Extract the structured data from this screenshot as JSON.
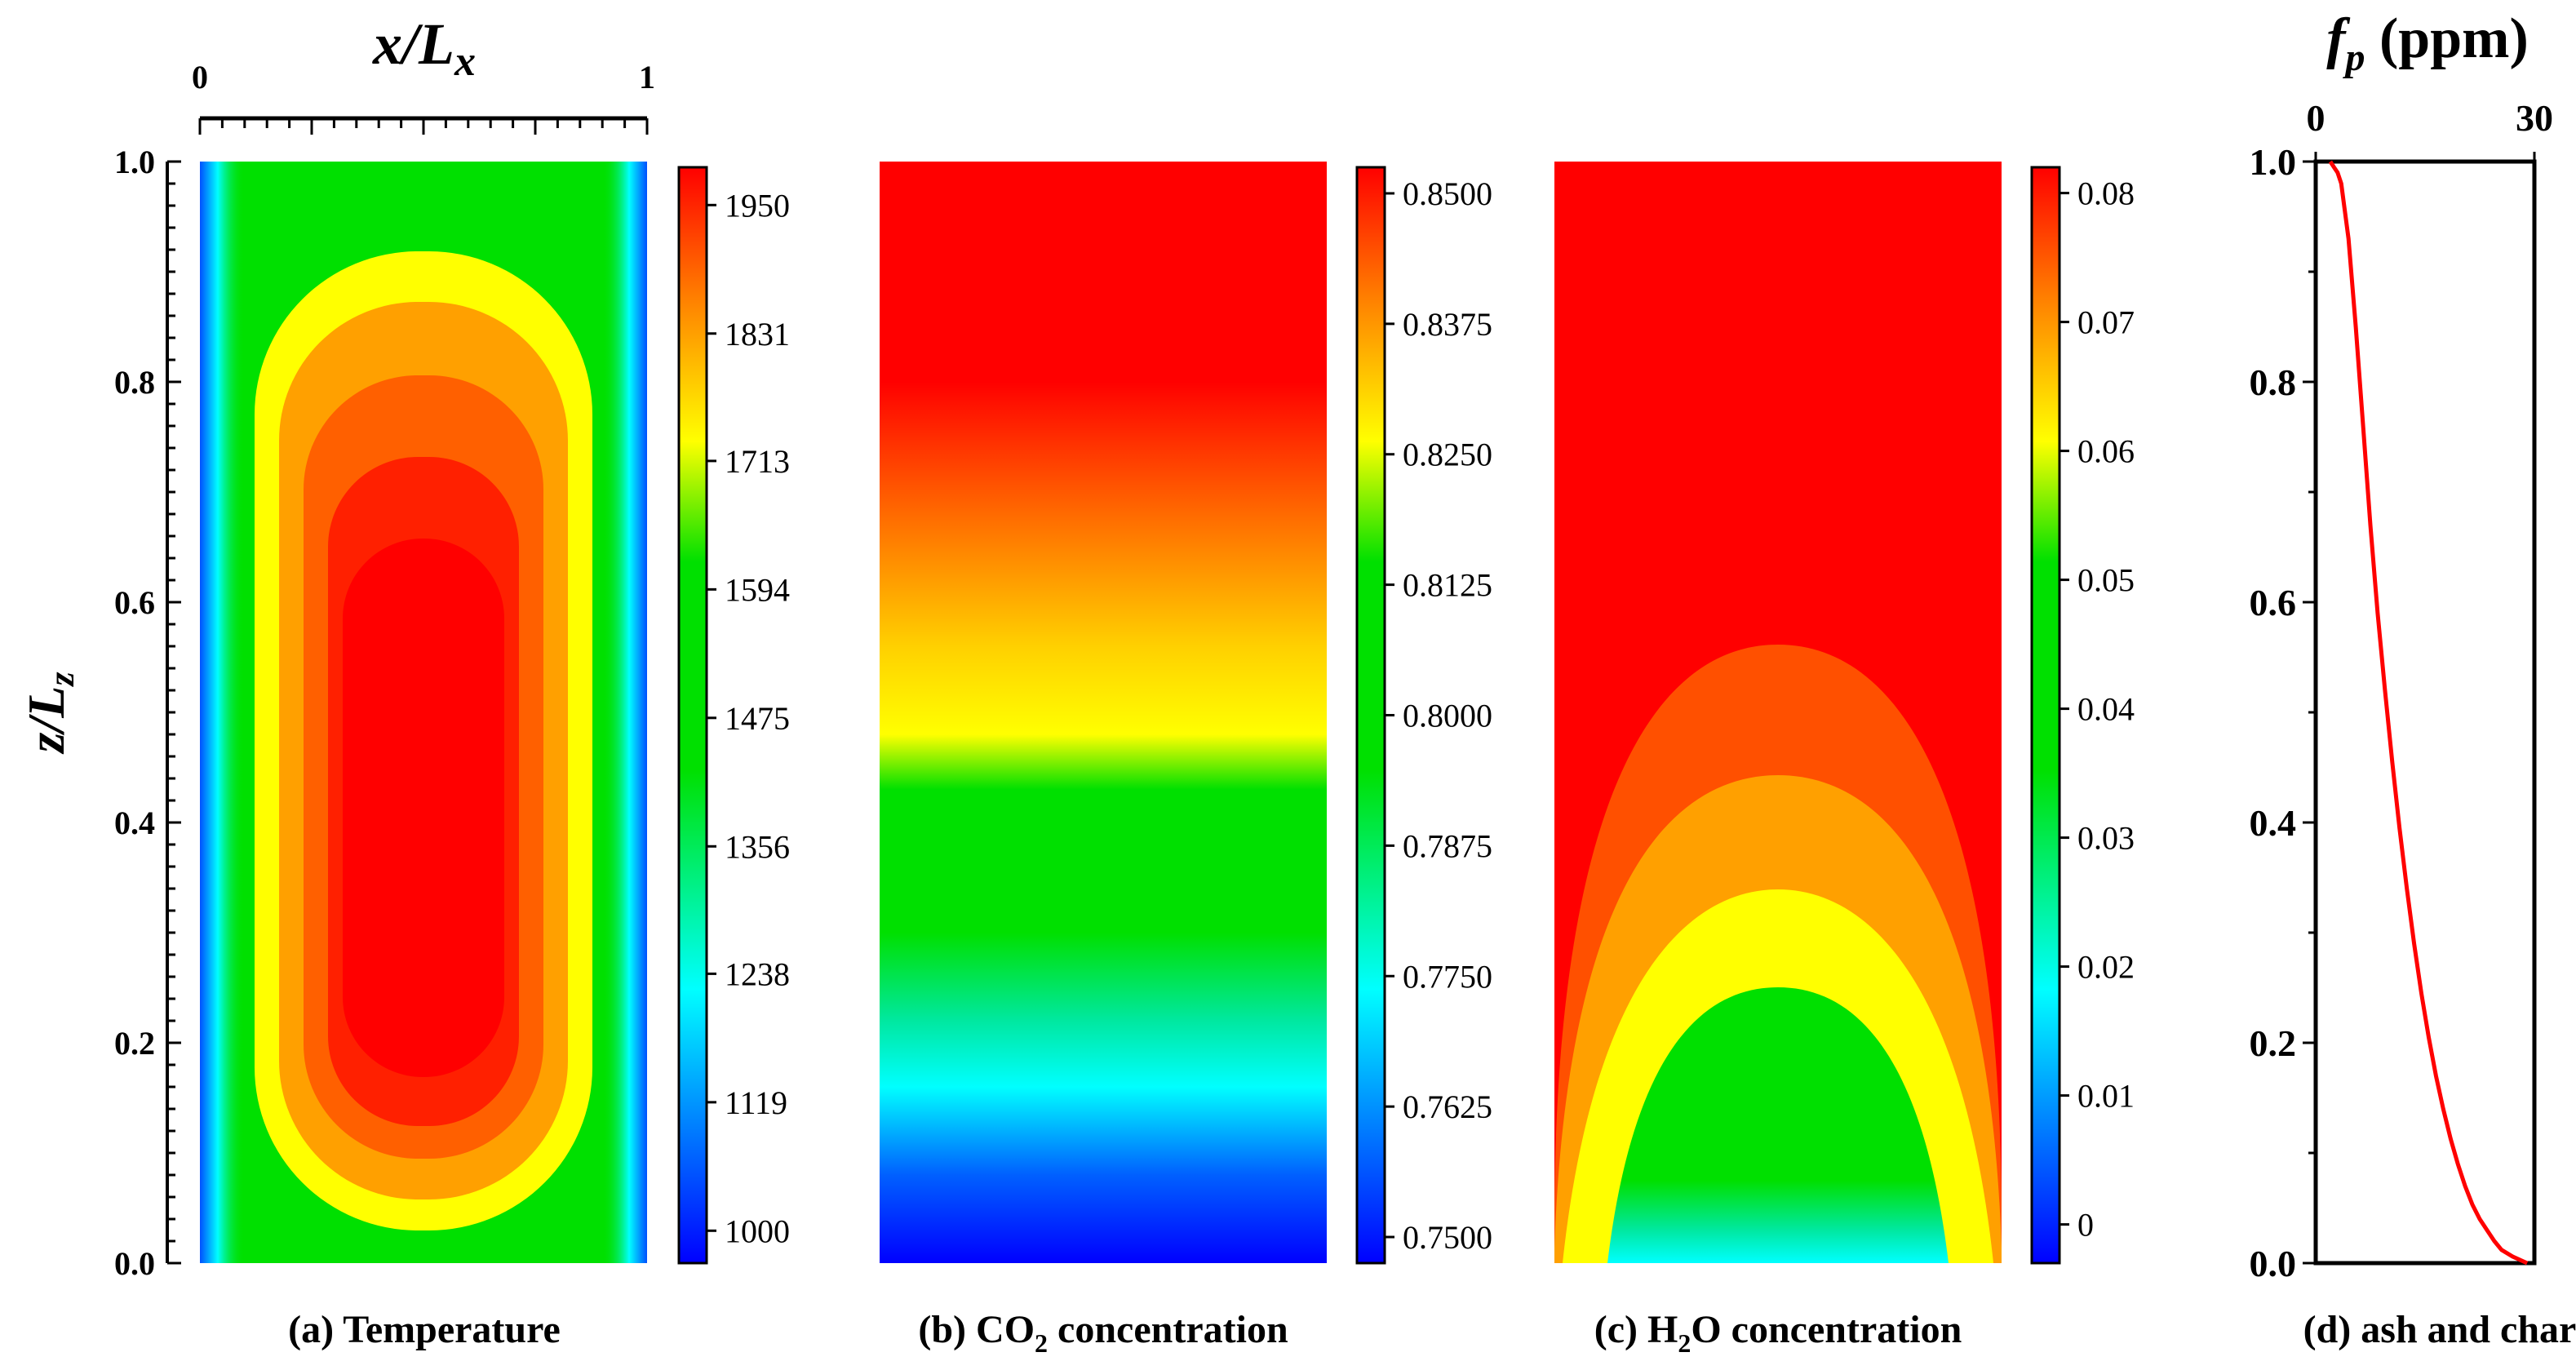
{
  "colors": {
    "red": "#ff0000",
    "orange": "#ff8000",
    "yellow": "#ffff00",
    "green": "#00e000",
    "cyan": "#00ffff",
    "blue": "#0000ff",
    "line_red": "#ff0000"
  },
  "chart_data": [
    {
      "id": "a",
      "type": "heatmap",
      "title": "(a) Temperature",
      "xlabel": "x/Lx",
      "ylabel": "z/Lz",
      "xlim": [
        0,
        1
      ],
      "ylim": [
        0,
        1
      ],
      "x_ticks": [
        "0",
        "1"
      ],
      "y_ticks": [
        "0.0",
        "0.2",
        "0.4",
        "0.6",
        "0.8",
        "1.0"
      ],
      "colorbar": {
        "min": 970,
        "max": 1985,
        "tick_values": [
          1000,
          1119,
          1238,
          1356,
          1475,
          1594,
          1713,
          1831,
          1950
        ],
        "tick_labels": [
          "1000",
          "1119",
          "1238",
          "1356",
          "1475",
          "1594",
          "1713",
          "1831",
          "1950"
        ]
      }
    },
    {
      "id": "b",
      "type": "heatmap",
      "title_prefix": "(b) CO",
      "title_sub": "2",
      "title_suffix": " concentration",
      "colorbar": {
        "min": 0.7475,
        "max": 0.8525,
        "tick_values": [
          0.75,
          0.7625,
          0.775,
          0.7875,
          0.8,
          0.8125,
          0.825,
          0.8375,
          0.85
        ],
        "tick_labels": [
          "0.7500",
          "0.7625",
          "0.7750",
          "0.7875",
          "0.8000",
          "0.8125",
          "0.8250",
          "0.8375",
          "0.8500"
        ]
      }
    },
    {
      "id": "c",
      "type": "heatmap",
      "title_prefix": "(c) H",
      "title_sub": "2",
      "title_suffix": "O concentration",
      "colorbar": {
        "min": -0.003,
        "max": 0.082,
        "tick_values": [
          0,
          0.01,
          0.02,
          0.03,
          0.04,
          0.05,
          0.06,
          0.07,
          0.08
        ],
        "tick_labels": [
          "0",
          "0.01",
          "0.02",
          "0.03",
          "0.04",
          "0.05",
          "0.06",
          "0.07",
          "0.08"
        ]
      }
    },
    {
      "id": "d",
      "type": "line",
      "title": "(d) ash and char",
      "xlabel_main": "f",
      "xlabel_sub": "p",
      "xlabel_unit": " (ppm)",
      "xlim": [
        0,
        30
      ],
      "ylim": [
        0,
        1
      ],
      "x_ticks": [
        "0",
        "30"
      ],
      "y_ticks": [
        "0.0",
        "0.2",
        "0.4",
        "0.6",
        "0.8",
        "1.0"
      ],
      "x": [
        2.0,
        2.5,
        3.0,
        3.5,
        4.5,
        5.5,
        6.5,
        7.5,
        8.5,
        9.5,
        10.5,
        11.5,
        12.5,
        13.5,
        14.5,
        15.5,
        16.5,
        17.5,
        18.5,
        19.5,
        20.5,
        21.5,
        22.5,
        23.5,
        24.5,
        25.5,
        27.0,
        29.0
      ],
      "y": [
        1.0,
        0.995,
        0.99,
        0.98,
        0.93,
        0.85,
        0.76,
        0.67,
        0.59,
        0.52,
        0.455,
        0.395,
        0.34,
        0.29,
        0.245,
        0.205,
        0.17,
        0.14,
        0.113,
        0.09,
        0.07,
        0.053,
        0.04,
        0.03,
        0.02,
        0.012,
        0.006,
        0.0
      ]
    }
  ]
}
